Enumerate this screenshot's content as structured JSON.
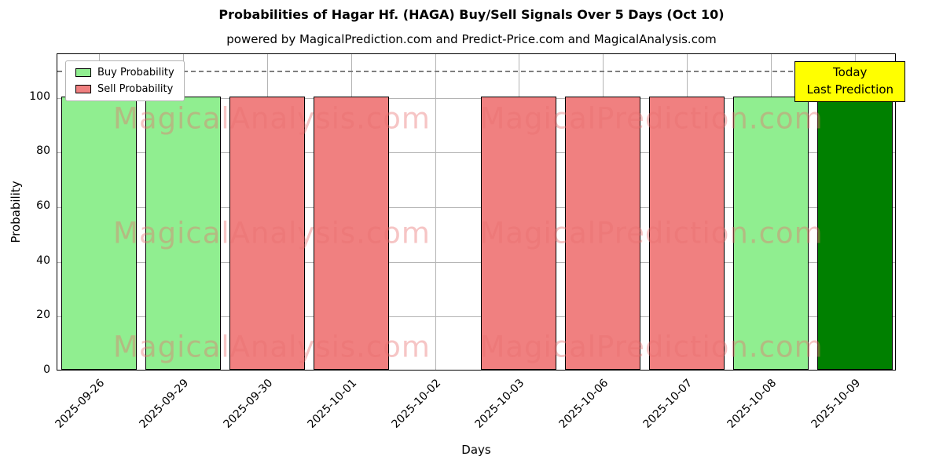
{
  "chart_data": {
    "type": "bar",
    "title": "Probabilities of Hagar Hf. (HAGA) Buy/Sell Signals Over 5 Days (Oct 10)",
    "subtitle": "powered by MagicalPrediction.com and Predict-Price.com and MagicalAnalysis.com",
    "xlabel": "Days",
    "ylabel": "Probability",
    "ylim": [
      0,
      116
    ],
    "yticks": [
      0,
      20,
      40,
      60,
      80,
      100
    ],
    "grid": "on",
    "dashed_line_y": 110,
    "categories": [
      "2025-09-26",
      "2025-09-29",
      "2025-09-30",
      "2025-10-01",
      "2025-10-02",
      "2025-10-03",
      "2025-10-06",
      "2025-10-07",
      "2025-10-08",
      "2025-10-09"
    ],
    "bars": [
      {
        "label": "2025-09-26",
        "value": 100,
        "series": "buy"
      },
      {
        "label": "2025-09-29",
        "value": 100,
        "series": "buy"
      },
      {
        "label": "2025-09-30",
        "value": 100,
        "series": "sell"
      },
      {
        "label": "2025-10-01",
        "value": 100,
        "series": "sell"
      },
      {
        "label": "2025-10-02",
        "value": 0,
        "series": "none"
      },
      {
        "label": "2025-10-03",
        "value": 100,
        "series": "sell"
      },
      {
        "label": "2025-10-06",
        "value": 100,
        "series": "sell"
      },
      {
        "label": "2025-10-07",
        "value": 100,
        "series": "sell"
      },
      {
        "label": "2025-10-08",
        "value": 100,
        "series": "buy"
      },
      {
        "label": "2025-10-09",
        "value": 100,
        "series": "today"
      }
    ],
    "colors": {
      "buy": "#90EE90",
      "sell": "#F08080",
      "today": "#008000"
    },
    "legend": {
      "position": "upper-left",
      "items": [
        {
          "label": "Buy Probability",
          "color": "#90EE90"
        },
        {
          "label": "Sell Probability",
          "color": "#F08080"
        }
      ]
    },
    "annotation": {
      "line1": "Today",
      "line2": "Last Prediction",
      "bg": "#ffff00"
    },
    "watermarks": {
      "left": "MagicalAnalysis.com",
      "right": "MagicalPrediction.com"
    }
  }
}
